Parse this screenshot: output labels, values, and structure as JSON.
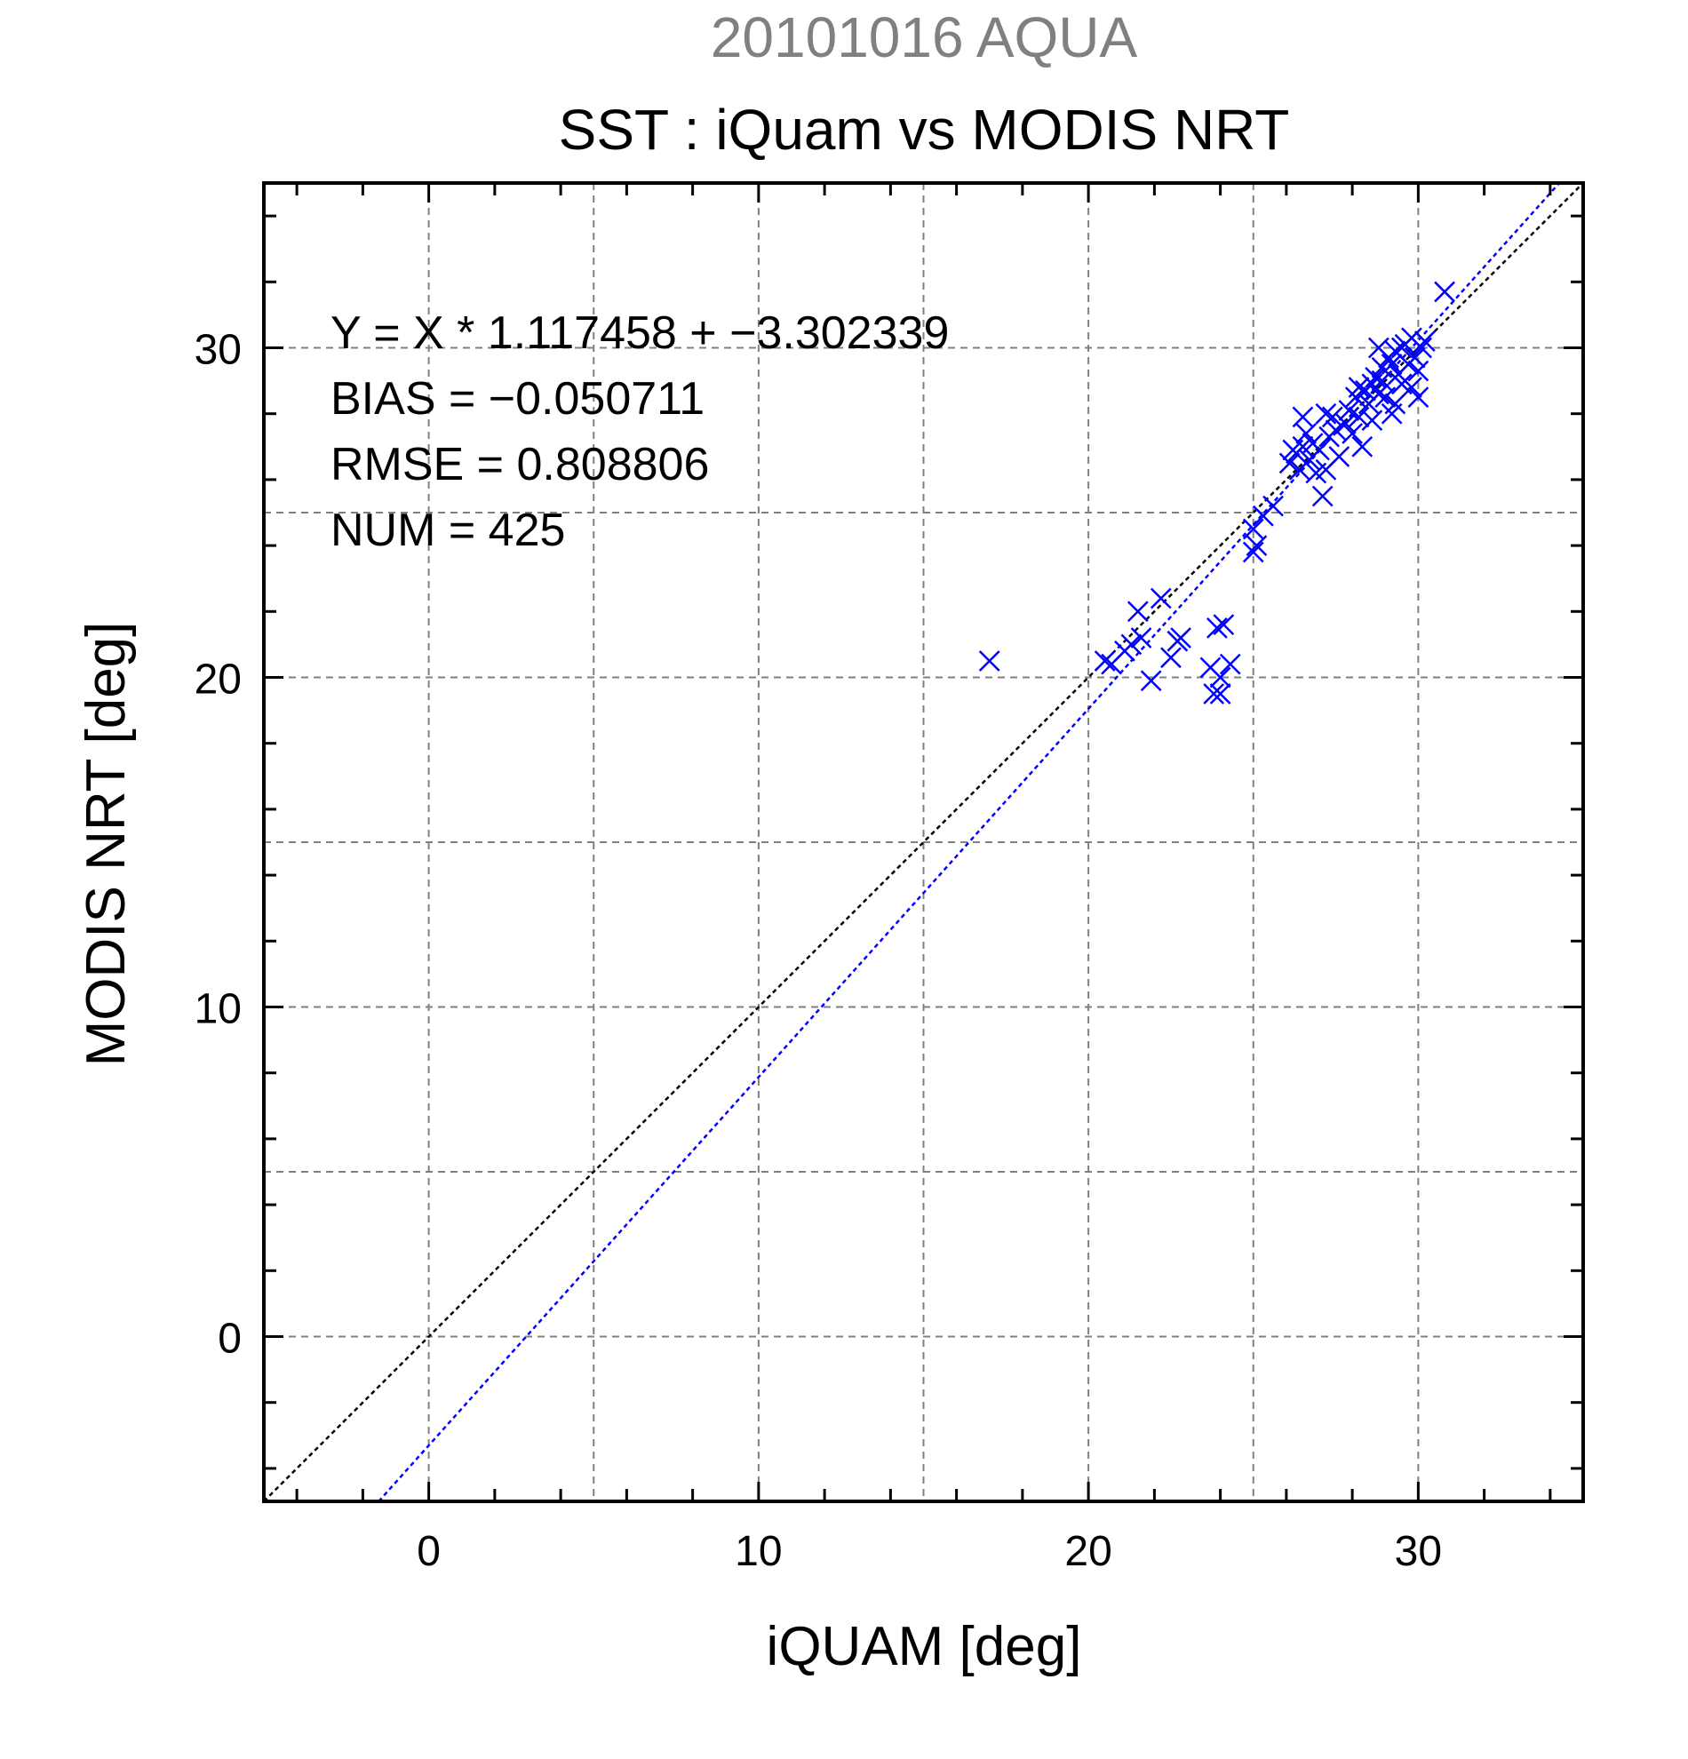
{
  "chart_data": {
    "type": "scatter",
    "subtitle": "20101016 AQUA",
    "title": "SST : iQuam vs MODIS NRT",
    "xlabel": "iQUAM [deg]",
    "ylabel": "MODIS NRT [deg]",
    "xlim": [
      -5,
      35
    ],
    "ylim": [
      -5,
      35
    ],
    "xticks": [
      "0",
      "10",
      "20",
      "30"
    ],
    "yticks": [
      "0",
      "10",
      "20",
      "30"
    ],
    "grid": true,
    "marker": "x",
    "colors": {
      "points": "#0000ff",
      "fit_line": "#0000ff",
      "identity_line": "#000000",
      "grid": "#808080",
      "subtitle": "#808080"
    },
    "stats": [
      "Y = X * 1.117458 + −3.302339",
      "BIAS = −0.050711",
      "RMSE = 0.808806",
      "NUM = 425"
    ],
    "fit_line": {
      "slope": 1.117458,
      "intercept": -3.302339
    },
    "identity_line": {
      "slope": 1,
      "intercept": 0
    },
    "series": [
      {
        "values": [
          [
            17.0,
            20.5
          ],
          [
            20.5,
            20.5
          ],
          [
            20.7,
            20.4
          ],
          [
            21.1,
            20.8
          ],
          [
            21.3,
            21.0
          ],
          [
            21.6,
            21.2
          ],
          [
            21.5,
            22.0
          ],
          [
            21.9,
            19.9
          ],
          [
            22.2,
            22.4
          ],
          [
            22.5,
            20.6
          ],
          [
            22.8,
            21.2
          ],
          [
            22.7,
            21.1
          ],
          [
            23.7,
            20.3
          ],
          [
            23.8,
            19.5
          ],
          [
            24.0,
            19.5
          ],
          [
            24.1,
            21.6
          ],
          [
            23.9,
            21.5
          ],
          [
            24.3,
            20.4
          ],
          [
            24.0,
            20.0
          ],
          [
            25.0,
            23.8
          ],
          [
            25.0,
            24.5
          ],
          [
            25.3,
            24.9
          ],
          [
            25.6,
            25.2
          ],
          [
            25.1,
            24.0
          ],
          [
            26.1,
            26.5
          ],
          [
            26.3,
            26.8
          ],
          [
            26.4,
            26.3
          ],
          [
            26.5,
            27.0
          ],
          [
            26.6,
            27.4
          ],
          [
            26.7,
            26.6
          ],
          [
            26.8,
            27.1
          ],
          [
            26.9,
            26.2
          ],
          [
            27.0,
            26.9
          ],
          [
            27.1,
            25.5
          ],
          [
            27.2,
            26.3
          ],
          [
            27.3,
            27.3
          ],
          [
            27.4,
            27.9
          ],
          [
            27.5,
            27.5
          ],
          [
            27.6,
            26.7
          ],
          [
            26.5,
            27.9
          ],
          [
            27.2,
            28.0
          ],
          [
            26.2,
            26.9
          ],
          [
            27.8,
            27.7
          ],
          [
            27.9,
            28.1
          ],
          [
            28.0,
            27.4
          ],
          [
            28.1,
            28.5
          ],
          [
            28.2,
            27.9
          ],
          [
            28.3,
            27.0
          ],
          [
            28.4,
            28.7
          ],
          [
            28.5,
            28.3
          ],
          [
            28.6,
            27.8
          ],
          [
            28.7,
            29.1
          ],
          [
            28.8,
            28.6
          ],
          [
            28.9,
            29.4
          ],
          [
            29.0,
            28.5
          ],
          [
            29.1,
            29.7
          ],
          [
            29.2,
            28.0
          ],
          [
            29.3,
            29.9
          ],
          [
            29.4,
            29.2
          ],
          [
            29.5,
            28.9
          ],
          [
            29.6,
            30.1
          ],
          [
            29.7,
            29.5
          ],
          [
            29.8,
            30.3
          ],
          [
            29.9,
            29.7
          ],
          [
            30.0,
            29.3
          ],
          [
            30.1,
            30.0
          ],
          [
            30.2,
            30.2
          ],
          [
            28.9,
            29.0
          ],
          [
            29.2,
            29.5
          ],
          [
            29.5,
            30.0
          ],
          [
            28.6,
            28.9
          ],
          [
            29.8,
            28.8
          ],
          [
            30.0,
            28.5
          ],
          [
            29.3,
            28.3
          ],
          [
            30.8,
            31.7
          ],
          [
            28.2,
            28.8
          ],
          [
            28.8,
            30.0
          ]
        ]
      }
    ]
  }
}
